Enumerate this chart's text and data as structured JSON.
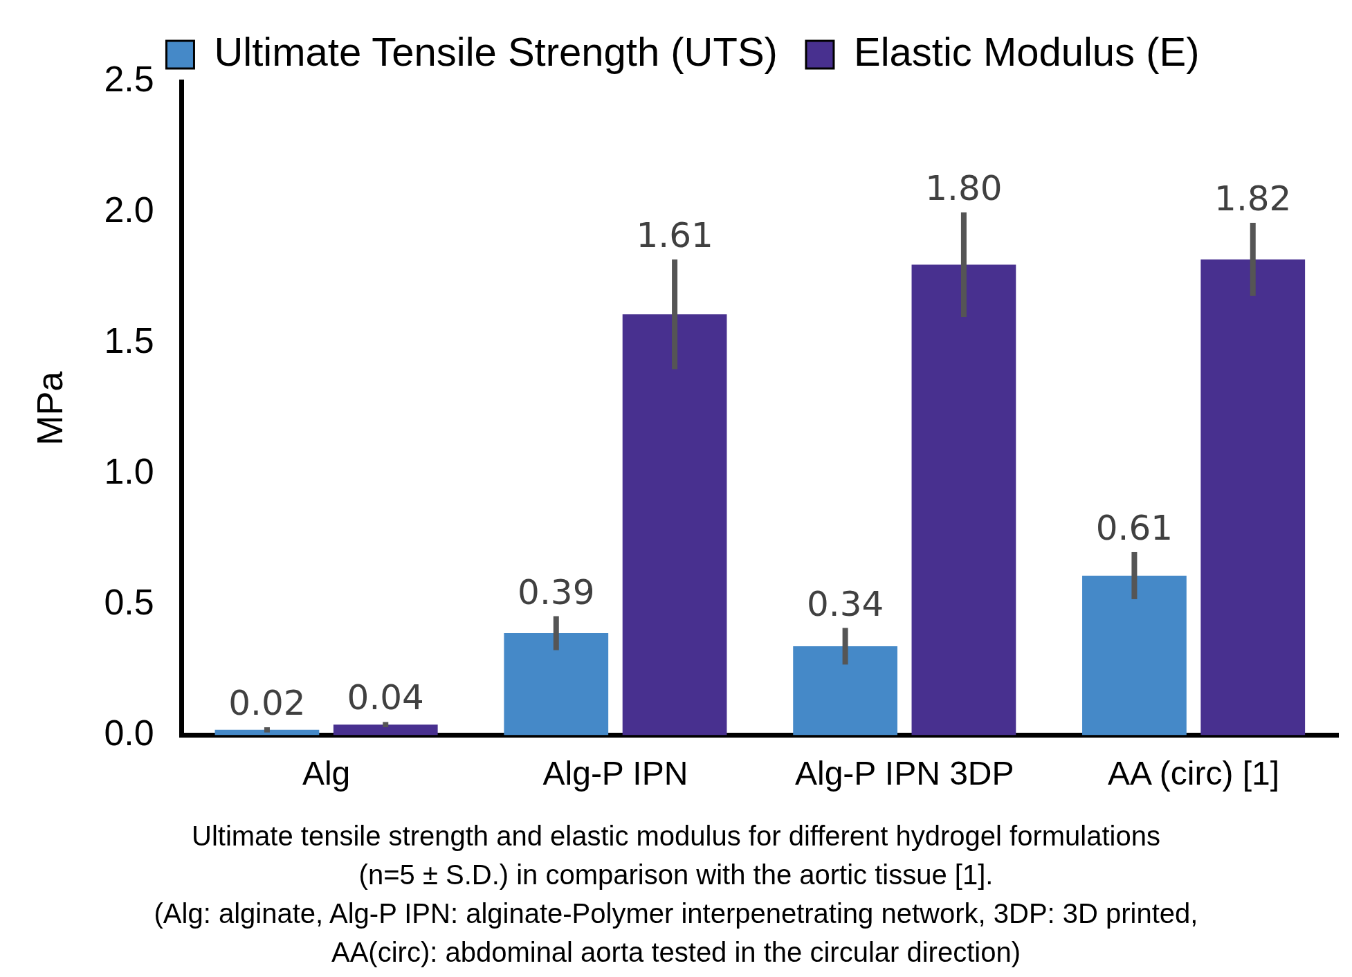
{
  "chart_data": {
    "type": "bar",
    "ylabel": "MPa",
    "categories": [
      "Alg",
      "Alg-P IPN",
      "Alg-P IPN 3DP",
      "AA (circ) [1]"
    ],
    "series": [
      {
        "name": "Ultimate Tensile Strength (UTS)",
        "color": "#4589c8",
        "values": [
          0.02,
          0.39,
          0.34,
          0.61
        ],
        "value_labels": [
          "0.02",
          "0.39",
          "0.34",
          "0.61"
        ],
        "errors": [
          0.01,
          0.065,
          0.07,
          0.09
        ]
      },
      {
        "name": "Elastic Modulus (E)",
        "color": "#48308f",
        "values": [
          0.04,
          1.61,
          1.8,
          1.82
        ],
        "value_labels": [
          "0.04",
          "1.61",
          "1.80",
          "1.82"
        ],
        "errors": [
          0.01,
          0.21,
          0.2,
          0.14
        ]
      }
    ],
    "ylim": [
      0,
      2.5
    ],
    "yticks": [
      {
        "value": 0,
        "label": "0.0"
      },
      {
        "value": 0.5,
        "label": "0.5"
      },
      {
        "value": 1,
        "label": "1.0"
      },
      {
        "value": 1.5,
        "label": "1.5"
      },
      {
        "value": 2,
        "label": "2.0"
      },
      {
        "value": 2.5,
        "label": "2.5"
      }
    ],
    "grid": false,
    "legend": "top",
    "annotations": [
      "Ultimate tensile strength and elastic modulus for different hydrogel formulations",
      "(n=5 ± S.D.) in comparison with the aortic tissue [1].",
      "(Alg: alginate, Alg-P IPN: alginate-Polymer interpenetrating network, 3DP: 3D printed,",
      "AA(circ): abdominal aorta tested in the circular direction)"
    ]
  }
}
